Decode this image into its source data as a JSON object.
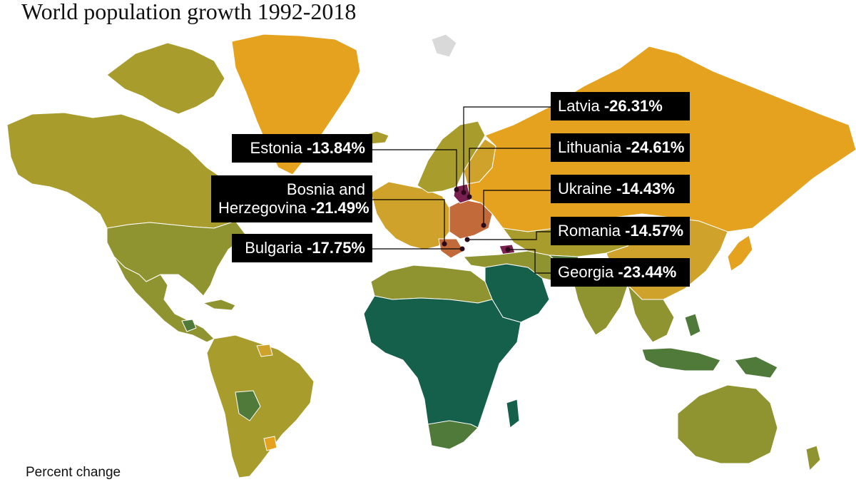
{
  "title": "World population growth 1992-2018",
  "legend": {
    "title": "Percent change"
  },
  "colors": {
    "ocean": "#ffffff",
    "border": "#ffffff",
    "growth_very_high": "#14604a",
    "growth_high": "#4f7a3a",
    "growth_medium": "#8f9430",
    "growth_low": "#a89c2c",
    "growth_very_low": "#cfa22b",
    "slight_decline": "#e5a21f",
    "decline": "#c26a3a",
    "strong_decline": "#7a2050",
    "no_data": "#d9d9d9",
    "label_bg": "#000000",
    "label_text": "#ffffff"
  },
  "callouts": [
    {
      "id": "latvia",
      "name": "Latvia",
      "value": "-26.31%"
    },
    {
      "id": "lithuania",
      "name": "Lithuania",
      "value": "-24.61%"
    },
    {
      "id": "ukraine",
      "name": "Ukraine",
      "value": "-14.43%"
    },
    {
      "id": "romania",
      "name": "Romania",
      "value": "-14.57%"
    },
    {
      "id": "georgia",
      "name": "Georgia",
      "value": "-23.44%"
    },
    {
      "id": "estonia",
      "name": "Estonia",
      "value": "-13.84%"
    },
    {
      "id": "bosnia",
      "name_line1": "Bosnia and",
      "name": "Herzegovina",
      "value": "-21.49%"
    },
    {
      "id": "bulgaria",
      "name": "Bulgaria",
      "value": "-17.75%"
    }
  ]
}
